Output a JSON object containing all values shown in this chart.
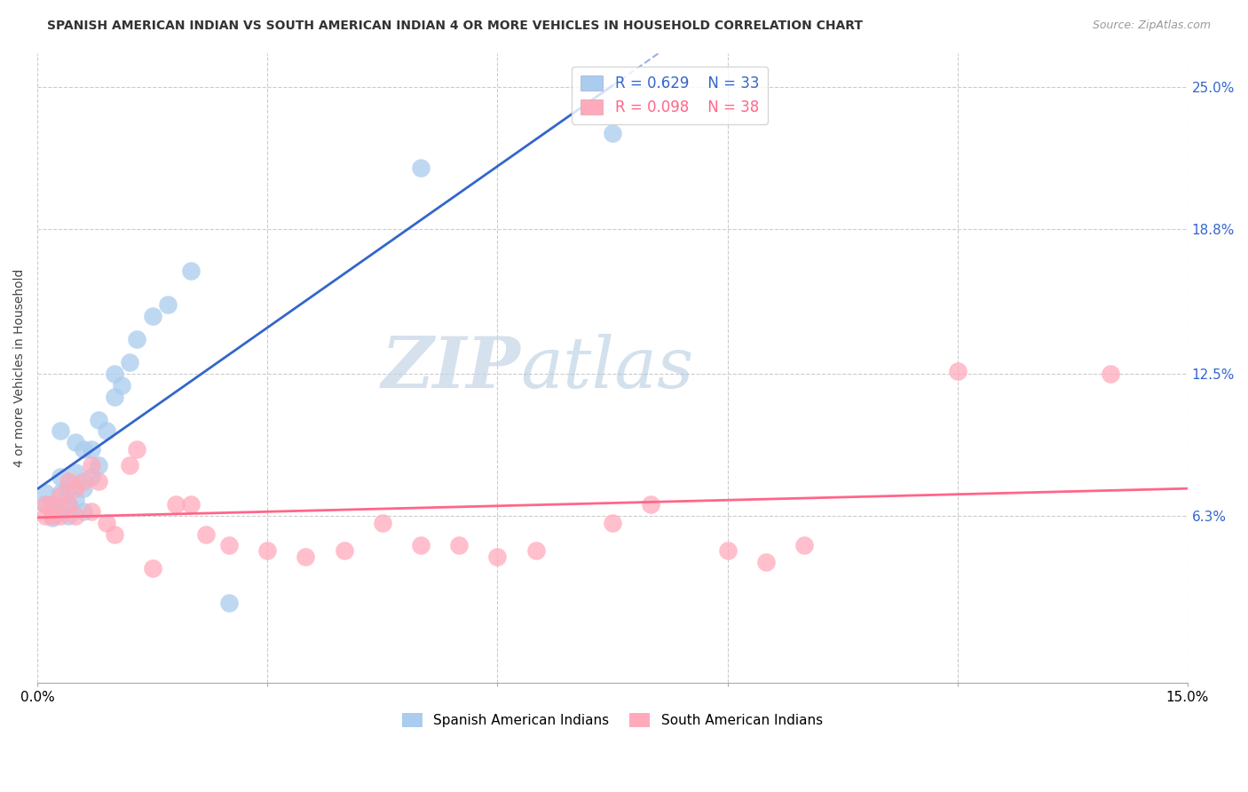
{
  "title": "SPANISH AMERICAN INDIAN VS SOUTH AMERICAN INDIAN 4 OR MORE VEHICLES IN HOUSEHOLD CORRELATION CHART",
  "source": "Source: ZipAtlas.com",
  "ylabel": "4 or more Vehicles in Household",
  "xlim": [
    0.0,
    0.15
  ],
  "ylim": [
    -0.01,
    0.265
  ],
  "blue_R": "R = 0.629",
  "blue_N": "N = 33",
  "pink_R": "R = 0.098",
  "pink_N": "N = 38",
  "blue_color": "#AACCEE",
  "pink_color": "#FFAABB",
  "blue_line_color": "#3366CC",
  "pink_line_color": "#FF6688",
  "legend_blue": "Spanish American Indians",
  "legend_pink": "South American Indians",
  "blue_x": [
    0.001,
    0.001,
    0.002,
    0.002,
    0.003,
    0.003,
    0.003,
    0.003,
    0.004,
    0.004,
    0.004,
    0.005,
    0.005,
    0.005,
    0.006,
    0.006,
    0.006,
    0.007,
    0.007,
    0.008,
    0.008,
    0.009,
    0.01,
    0.01,
    0.011,
    0.012,
    0.013,
    0.015,
    0.017,
    0.02,
    0.025,
    0.05,
    0.075
  ],
  "blue_y": [
    0.073,
    0.068,
    0.068,
    0.062,
    0.065,
    0.073,
    0.08,
    0.1,
    0.063,
    0.068,
    0.075,
    0.07,
    0.082,
    0.095,
    0.065,
    0.075,
    0.092,
    0.08,
    0.092,
    0.085,
    0.105,
    0.1,
    0.115,
    0.125,
    0.12,
    0.13,
    0.14,
    0.15,
    0.155,
    0.17,
    0.025,
    0.215,
    0.23
  ],
  "pink_x": [
    0.001,
    0.001,
    0.002,
    0.002,
    0.003,
    0.003,
    0.004,
    0.004,
    0.005,
    0.005,
    0.006,
    0.007,
    0.007,
    0.008,
    0.009,
    0.01,
    0.012,
    0.013,
    0.015,
    0.018,
    0.02,
    0.022,
    0.025,
    0.03,
    0.035,
    0.04,
    0.045,
    0.05,
    0.055,
    0.06,
    0.065,
    0.075,
    0.08,
    0.09,
    0.095,
    0.1,
    0.12,
    0.14
  ],
  "pink_y": [
    0.063,
    0.068,
    0.063,
    0.068,
    0.063,
    0.072,
    0.068,
    0.078,
    0.063,
    0.075,
    0.078,
    0.065,
    0.085,
    0.078,
    0.06,
    0.055,
    0.085,
    0.092,
    0.04,
    0.068,
    0.068,
    0.055,
    0.05,
    0.048,
    0.045,
    0.048,
    0.06,
    0.05,
    0.05,
    0.045,
    0.048,
    0.06,
    0.068,
    0.048,
    0.043,
    0.05,
    0.126,
    0.125
  ],
  "ytick_vals": [
    0.063,
    0.125,
    0.188,
    0.25
  ],
  "ytick_labels": [
    "6.3%",
    "12.5%",
    "18.8%",
    "25.0%"
  ],
  "watermark_zip": "ZIP",
  "watermark_atlas": "atlas",
  "grid_color": "#CCCCCC",
  "background_color": "#FFFFFF"
}
